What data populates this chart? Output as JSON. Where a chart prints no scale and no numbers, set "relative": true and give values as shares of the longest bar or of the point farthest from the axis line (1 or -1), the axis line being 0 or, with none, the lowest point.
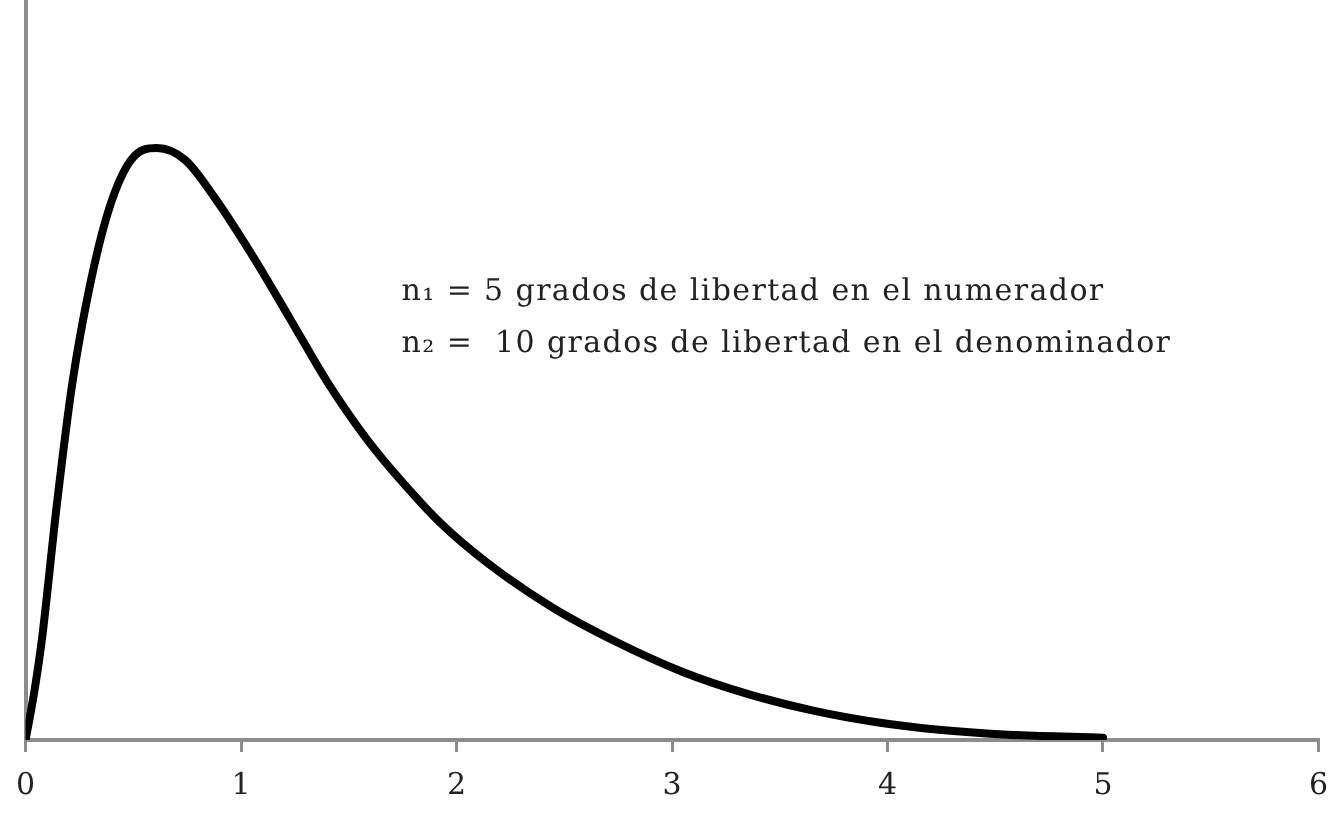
{
  "chart_data": {
    "type": "line",
    "relative": true,
    "x": [
      0,
      0.04,
      0.076,
      0.146,
      0.216,
      0.3,
      0.39,
      0.49,
      0.61,
      0.74,
      0.88,
      1.05,
      1.23,
      1.4,
      1.58,
      1.75,
      1.93,
      2.14,
      2.44,
      2.74,
      3.05,
      3.35,
      3.65,
      3.95,
      4.25,
      4.56,
      5.0
    ],
    "values": [
      0,
      0.08,
      0.17,
      0.4,
      0.6,
      0.77,
      0.9,
      0.98,
      1,
      0.98,
      0.915,
      0.82,
      0.71,
      0.605,
      0.51,
      0.435,
      0.365,
      0.3,
      0.225,
      0.166,
      0.115,
      0.078,
      0.05,
      0.03,
      0.017,
      0.009,
      0.004
    ],
    "color": "#000000",
    "xlim": [
      0,
      6
    ],
    "xticks": [
      0,
      1,
      2,
      3,
      4,
      5,
      6
    ],
    "annotations": [
      "n₁ = 5 grados de libertad en el numerador",
      "n₂ =  10 grados de libertad en el denominador"
    ],
    "grid": false,
    "legend": false,
    "marker": "none"
  }
}
